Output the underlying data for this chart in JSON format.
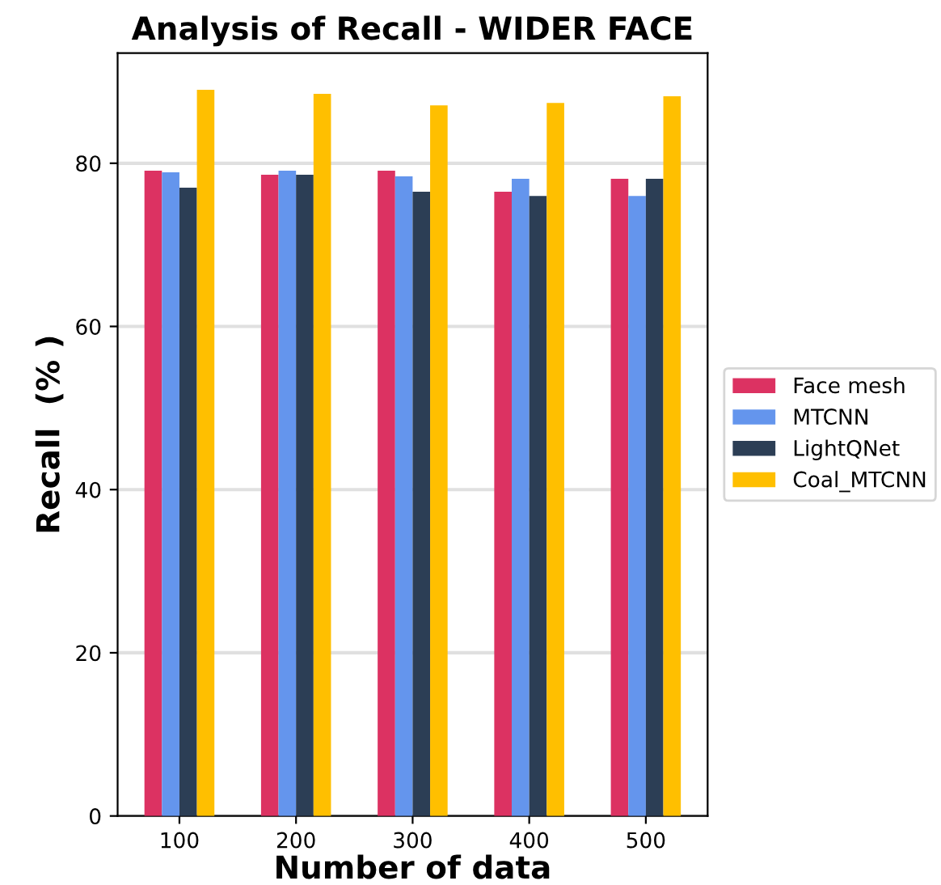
{
  "chart_data": {
    "type": "bar",
    "title": "Analysis of Recall - WIDER FACE",
    "xlabel": "Number of data",
    "ylabel": "Recall  (% )",
    "categories": [
      "100",
      "200",
      "300",
      "400",
      "500"
    ],
    "series": [
      {
        "name": "Face mesh",
        "color": "#dc3262",
        "values": [
          79.1,
          78.6,
          79.1,
          76.5,
          78.1
        ]
      },
      {
        "name": "MTCNN",
        "color": "#6495ed",
        "values": [
          78.9,
          79.1,
          78.4,
          78.1,
          76.0
        ]
      },
      {
        "name": "LightQNet",
        "color": "#2c3e55",
        "values": [
          77.0,
          78.6,
          76.5,
          76.0,
          78.1
        ]
      },
      {
        "name": "Coal_MTCNN",
        "color": "#ffbf00",
        "values": [
          89.0,
          88.5,
          87.1,
          87.4,
          88.2
        ]
      }
    ],
    "ylim": [
      0,
      93.5
    ],
    "yticks": [
      0,
      20,
      40,
      60,
      80
    ],
    "grid": "y",
    "legend": "right"
  }
}
